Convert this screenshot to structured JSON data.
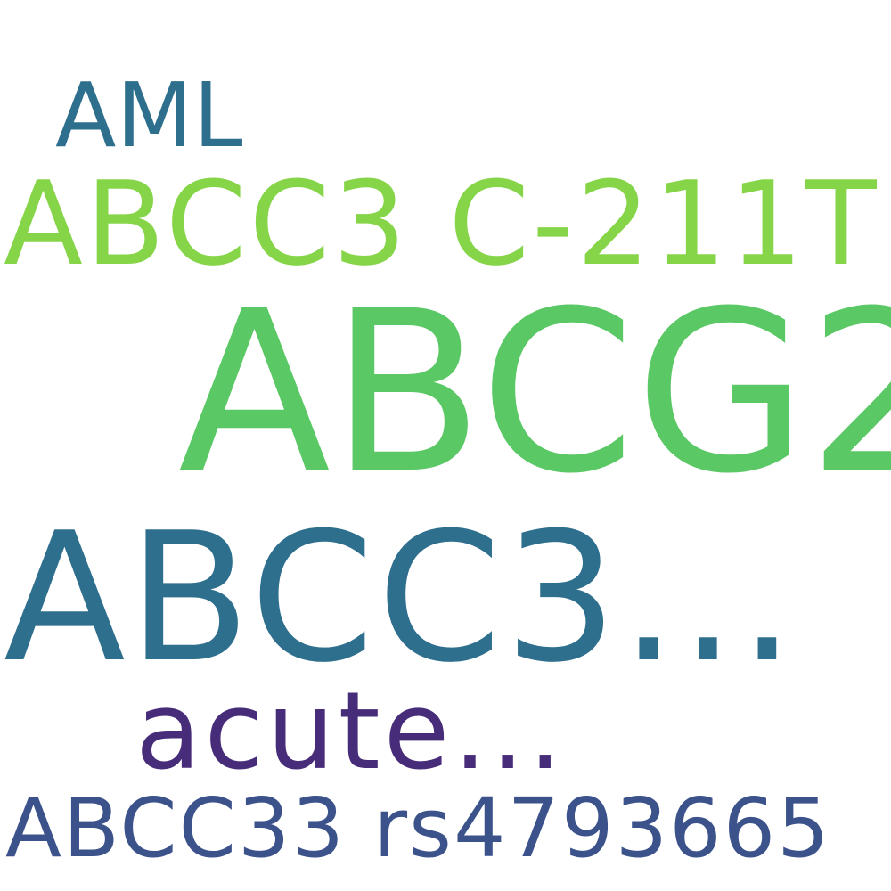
{
  "word_cloud": {
    "words": [
      {
        "text": "AML",
        "color": "#2e6f8e"
      },
      {
        "text": "ABCC3 C-211T",
        "color": "#86d549"
      },
      {
        "text": "ABCG2",
        "color": "#5ac864"
      },
      {
        "text": "ABCC3...",
        "color": "#2e6f8e"
      },
      {
        "text": "acute...",
        "color": "#472c7a"
      },
      {
        "text": "ABCC33 rs4793665",
        "color": "#3b528b"
      }
    ]
  }
}
